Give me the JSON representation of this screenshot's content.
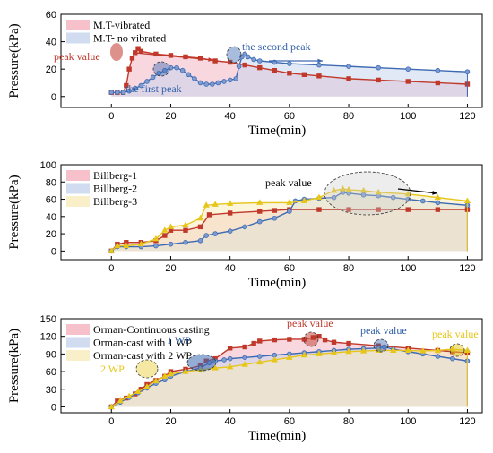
{
  "chart_data": [
    {
      "type": "line",
      "xlabel": "Time(min)",
      "ylabel": "Pressure(kPa)",
      "xlim": [
        -17,
        125
      ],
      "ylim": [
        -8,
        60
      ],
      "xticks": [
        0,
        20,
        40,
        60,
        80,
        100,
        120
      ],
      "yticks": [
        0,
        20,
        40,
        60
      ],
      "legend_position": "top-left",
      "series": [
        {
          "name": "M.T-vibrated",
          "color": "#c0392b",
          "fill": "#f4b6c2",
          "marker": "square",
          "x": [
            0,
            2,
            4,
            5,
            6,
            7,
            8,
            9,
            10,
            15,
            20,
            25,
            30,
            35,
            40,
            45,
            50,
            55,
            60,
            65,
            70,
            80,
            90,
            100,
            110,
            120
          ],
          "y": [
            3,
            3,
            3,
            8,
            20,
            28,
            32,
            35,
            33,
            31,
            30,
            29,
            28,
            26,
            25,
            23,
            21,
            19,
            17,
            16,
            15,
            13,
            12,
            11,
            10,
            9
          ]
        },
        {
          "name": "M.T- no vibrated",
          "color": "#3d6ab3",
          "fill": "#c9d6ee",
          "marker": "circle",
          "x": [
            0,
            2,
            4,
            6,
            8,
            10,
            12,
            14,
            16,
            18,
            20,
            22,
            24,
            26,
            28,
            30,
            32,
            34,
            36,
            38,
            40,
            42,
            43,
            44,
            45,
            46,
            48,
            50,
            55,
            60,
            70,
            80,
            90,
            100,
            110,
            120
          ],
          "y": [
            3,
            3,
            3,
            4,
            6,
            8,
            11,
            14,
            17,
            19,
            21,
            21,
            19,
            16,
            13,
            10,
            9,
            9,
            10,
            11,
            12,
            13,
            22,
            29,
            31,
            29,
            27,
            26,
            25,
            24,
            23,
            22,
            21,
            20,
            19,
            18
          ]
        }
      ],
      "annotations": [
        {
          "text": "peak value",
          "color": "#c0392b"
        },
        {
          "text": "the first peak",
          "color": "#2e5fa8"
        },
        {
          "text": "the second peak",
          "color": "#2e5fa8"
        }
      ]
    },
    {
      "type": "line",
      "xlabel": "Time(min)",
      "ylabel": "Pressure(kPa)",
      "xlim": [
        -17,
        125
      ],
      "ylim": [
        -10,
        100
      ],
      "xticks": [
        0,
        20,
        40,
        60,
        80,
        100,
        120
      ],
      "yticks": [
        0,
        20,
        40,
        60,
        80,
        100
      ],
      "legend_position": "top-left",
      "series": [
        {
          "name": "Billberg-1",
          "color": "#c0392b",
          "fill": "#f4b6c2",
          "marker": "square",
          "x": [
            0,
            2,
            5,
            10,
            15,
            18,
            20,
            25,
            30,
            33,
            40,
            50,
            55,
            60,
            70,
            80,
            90,
            100,
            110,
            120
          ],
          "y": [
            0,
            8,
            10,
            10,
            12,
            18,
            24,
            24,
            28,
            42,
            44,
            46,
            47,
            48,
            48,
            48,
            48,
            48,
            48,
            48
          ]
        },
        {
          "name": "Billberg-2",
          "color": "#3d6ab3",
          "fill": "#c9d6ee",
          "marker": "circle",
          "x": [
            0,
            2,
            5,
            10,
            15,
            20,
            25,
            30,
            32,
            35,
            40,
            45,
            50,
            55,
            60,
            62,
            65,
            70,
            75,
            78,
            80,
            85,
            90,
            95,
            100,
            105,
            110,
            120
          ],
          "y": [
            0,
            5,
            5,
            5,
            6,
            8,
            10,
            12,
            18,
            20,
            23,
            28,
            34,
            38,
            46,
            58,
            60,
            61,
            62,
            68,
            67,
            65,
            64,
            62,
            60,
            58,
            56,
            53
          ]
        },
        {
          "name": "Billberg-3",
          "color": "#e6c619",
          "fill": "#f8ecbf",
          "marker": "triangle",
          "x": [
            0,
            2,
            5,
            10,
            15,
            18,
            20,
            25,
            30,
            32,
            35,
            40,
            50,
            60,
            65,
            70,
            75,
            78,
            80,
            85,
            90,
            100,
            110,
            120
          ],
          "y": [
            0,
            6,
            6,
            8,
            14,
            24,
            28,
            30,
            38,
            53,
            54,
            55,
            56,
            56,
            58,
            62,
            70,
            72,
            71,
            70,
            68,
            66,
            62,
            58
          ]
        }
      ],
      "annotations": [
        {
          "text": "peak value",
          "color": "#000000"
        }
      ]
    },
    {
      "type": "line",
      "xlabel": "Time(min)",
      "ylabel": "Pressure(kPa)",
      "xlim": [
        -17,
        125
      ],
      "ylim": [
        -10,
        150
      ],
      "xticks": [
        0,
        20,
        40,
        60,
        80,
        100,
        120
      ],
      "yticks": [
        0,
        30,
        60,
        90,
        120,
        150
      ],
      "legend_position": "top-left",
      "series": [
        {
          "name": "Orman-Continuous casting",
          "color": "#c0392b",
          "fill": "#f4b6c2",
          "marker": "square",
          "x": [
            0,
            2,
            5,
            8,
            10,
            12,
            15,
            18,
            20,
            25,
            30,
            32,
            35,
            40,
            45,
            48,
            50,
            55,
            60,
            65,
            68,
            70,
            72,
            75,
            80,
            90,
            100,
            110,
            115,
            120
          ],
          "y": [
            0,
            10,
            15,
            22,
            30,
            38,
            45,
            52,
            60,
            64,
            70,
            78,
            82,
            100,
            102,
            108,
            112,
            114,
            115,
            115,
            118,
            120,
            114,
            110,
            108,
            104,
            100,
            96,
            94,
            92
          ]
        },
        {
          "name": "Orman-cast with 1 WP",
          "color": "#3d6ab3",
          "fill": "#c9d6ee",
          "marker": "circle",
          "x": [
            0,
            3,
            6,
            9,
            12,
            15,
            18,
            20,
            25,
            30,
            33,
            35,
            38,
            40,
            45,
            50,
            55,
            60,
            65,
            70,
            75,
            80,
            85,
            90,
            92,
            95,
            100,
            105,
            110,
            115,
            120
          ],
          "y": [
            0,
            8,
            16,
            24,
            32,
            40,
            46,
            52,
            60,
            66,
            75,
            78,
            80,
            82,
            84,
            86,
            88,
            90,
            92,
            94,
            96,
            98,
            99,
            100,
            102,
            98,
            94,
            90,
            86,
            82,
            78
          ]
        },
        {
          "name": "Orman-cast with 2 WP",
          "color": "#e6c619",
          "fill": "#f8ecbf",
          "marker": "triangle",
          "x": [
            0,
            3,
            6,
            9,
            12,
            15,
            18,
            20,
            25,
            30,
            35,
            40,
            45,
            50,
            55,
            60,
            65,
            70,
            75,
            80,
            85,
            90,
            95,
            100,
            105,
            110,
            115,
            120
          ],
          "y": [
            0,
            10,
            18,
            26,
            34,
            44,
            52,
            56,
            60,
            63,
            66,
            68,
            72,
            76,
            80,
            84,
            88,
            90,
            92,
            94,
            95,
            96,
            96,
            96,
            95,
            96,
            98,
            96
          ]
        }
      ],
      "annotations": [
        {
          "text": "peak value",
          "color": "#c0392b"
        },
        {
          "text": "peak value",
          "color": "#2e5fa8"
        },
        {
          "text": "peak value",
          "color": "#e6c619"
        },
        {
          "text": "1 WP",
          "color": "#2e5fa8"
        },
        {
          "text": "2 WP",
          "color": "#e6c619"
        }
      ]
    }
  ]
}
